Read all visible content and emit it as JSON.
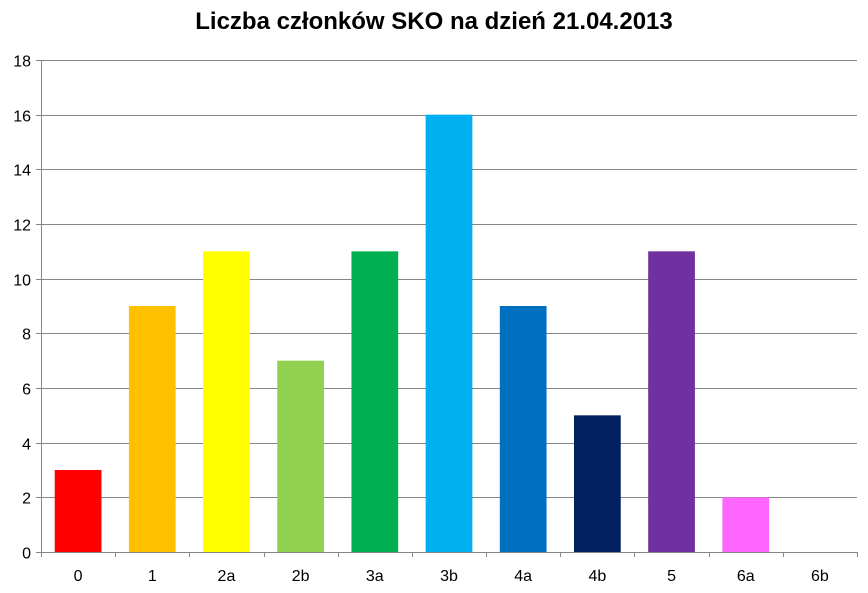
{
  "chart_data": {
    "type": "bar",
    "title": "Liczba członków SKO na dzień 21.04.2013",
    "xlabel": "",
    "ylabel": "",
    "categories": [
      "0",
      "1",
      "2a",
      "2b",
      "3a",
      "3b",
      "4a",
      "4b",
      "5",
      "6a",
      "6b"
    ],
    "values": [
      3,
      9,
      11,
      7,
      11,
      16,
      9,
      5,
      11,
      2,
      0
    ],
    "colors": [
      "#FF0000",
      "#FFC000",
      "#FFFF00",
      "#92D050",
      "#00B050",
      "#00B0F0",
      "#0070C0",
      "#002060",
      "#7030A0",
      "#FF66FF",
      "#FFFFFF"
    ],
    "ylim": [
      0,
      18
    ],
    "yticks": [
      0,
      2,
      4,
      6,
      8,
      10,
      12,
      14,
      16,
      18
    ],
    "grid": true,
    "legend": "none"
  }
}
